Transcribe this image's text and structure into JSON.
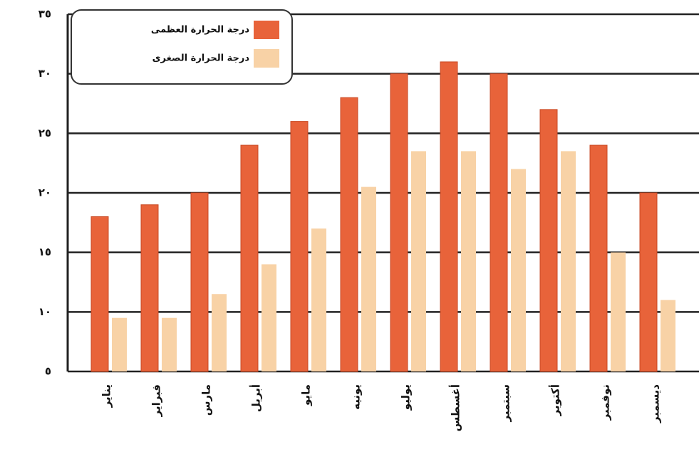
{
  "chart_data": {
    "type": "bar",
    "categories": [
      "يناير",
      "فبراير",
      "مارس",
      "أبريل",
      "مايو",
      "يونيه",
      "يوليو",
      "أغسطس",
      "سبتمبر",
      "أكتوبر",
      "نوفمبر",
      "ديسمبر"
    ],
    "series": [
      {
        "name": "درجة الحرارة العظمى",
        "color": "#e8633a",
        "values": [
          18,
          19,
          20,
          24,
          26,
          28,
          30,
          31,
          30,
          27,
          24,
          20
        ]
      },
      {
        "name": "درجة الحرارة الصغرى",
        "color": "#f8d2a6",
        "values": [
          9.5,
          9.5,
          11.5,
          14,
          17,
          20.5,
          23.5,
          23.5,
          22,
          23.5,
          15,
          11
        ]
      }
    ],
    "ylim": [
      5,
      35
    ],
    "yticks": [
      {
        "value": 5,
        "label": "٥"
      },
      {
        "value": 10,
        "label": "١٠"
      },
      {
        "value": 15,
        "label": "١٥"
      },
      {
        "value": 20,
        "label": "٢٠"
      },
      {
        "value": 25,
        "label": "٢٥"
      },
      {
        "value": 30,
        "label": "٣٠"
      },
      {
        "value": 35,
        "label": "٣٥"
      }
    ],
    "grid": true,
    "legend": "top-left"
  }
}
